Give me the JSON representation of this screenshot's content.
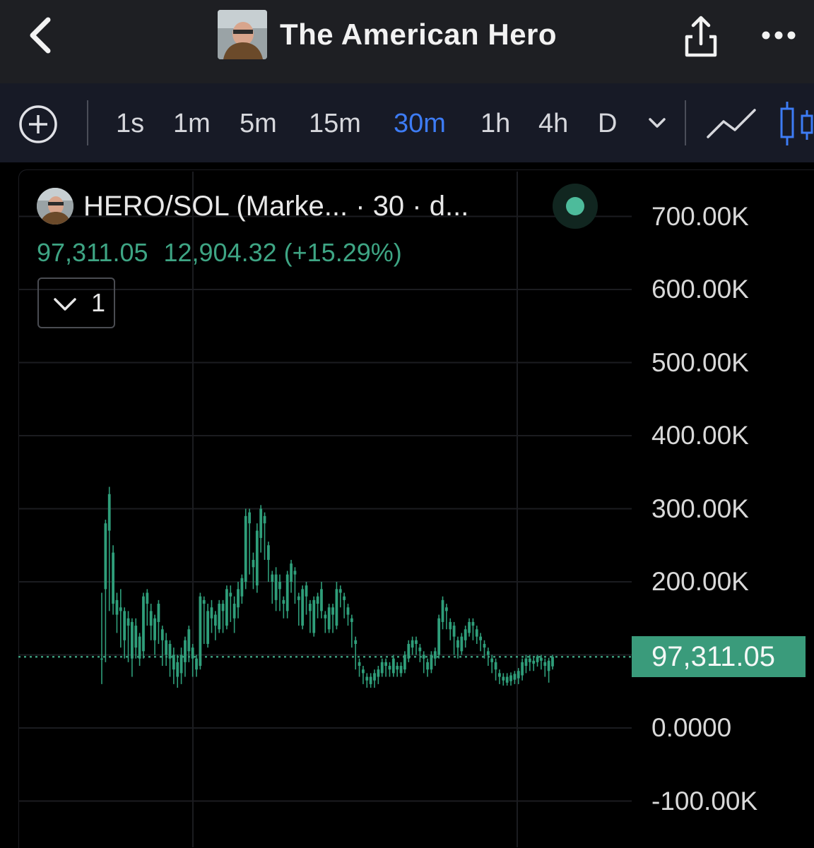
{
  "header": {
    "title": "The American Hero",
    "back_icon": "chevron-left-icon",
    "share_icon": "share-icon",
    "more_icon": "more-horizontal-icon"
  },
  "toolbar": {
    "timeframes": [
      "1s",
      "1m",
      "5m",
      "15m",
      "30m",
      "1h",
      "4h",
      "D"
    ],
    "active_timeframe": "30m",
    "active_color": "#3d7cf5"
  },
  "legend": {
    "symbol": "HERO/SOL (Marke... · 30 · d...",
    "last": "97,311.05",
    "change": "12,904.32 (+15.29%)",
    "indicators_count": "1",
    "status_color": "#4dbb9b"
  },
  "chart_data": {
    "type": "candlestick",
    "interval": "30m",
    "y_ticks": [
      "700.00K",
      "600.00K",
      "500.00K",
      "400.00K",
      "300.00K",
      "200.00K",
      "0.0000",
      "-100.00K"
    ],
    "ylim": [
      -100000,
      700000
    ],
    "last_price": 97311.05,
    "last_price_label": "97,311.05",
    "up_color": "#2f9e7a",
    "down_color": "#e8515a",
    "candles": [
      [
        95000,
        95000,
        60000,
        185000
      ],
      [
        190000,
        280000,
        90000,
        285000
      ],
      [
        270000,
        320000,
        160000,
        330000
      ],
      [
        170000,
        240000,
        155000,
        250000
      ],
      [
        155000,
        175000,
        130000,
        185000
      ],
      [
        160000,
        165000,
        110000,
        190000
      ],
      [
        120000,
        160000,
        95000,
        165000
      ],
      [
        140000,
        150000,
        90000,
        160000
      ],
      [
        95000,
        145000,
        70000,
        150000
      ],
      [
        110000,
        140000,
        95000,
        150000
      ],
      [
        95000,
        125000,
        85000,
        130000
      ],
      [
        105000,
        180000,
        95000,
        185000
      ],
      [
        170000,
        185000,
        140000,
        190000
      ],
      [
        140000,
        160000,
        120000,
        170000
      ],
      [
        120000,
        150000,
        100000,
        155000
      ],
      [
        145000,
        170000,
        115000,
        175000
      ],
      [
        120000,
        135000,
        85000,
        140000
      ],
      [
        100000,
        120000,
        85000,
        130000
      ],
      [
        95000,
        115000,
        70000,
        120000
      ],
      [
        80000,
        100000,
        60000,
        110000
      ],
      [
        70000,
        90000,
        55000,
        100000
      ],
      [
        75000,
        100000,
        60000,
        110000
      ],
      [
        90000,
        120000,
        70000,
        125000
      ],
      [
        105000,
        135000,
        90000,
        140000
      ],
      [
        95000,
        110000,
        70000,
        115000
      ],
      [
        80000,
        95000,
        70000,
        100000
      ],
      [
        85000,
        180000,
        80000,
        185000
      ],
      [
        170000,
        175000,
        115000,
        180000
      ],
      [
        115000,
        160000,
        110000,
        170000
      ],
      [
        150000,
        165000,
        130000,
        175000
      ],
      [
        140000,
        155000,
        120000,
        160000
      ],
      [
        135000,
        170000,
        130000,
        175000
      ],
      [
        160000,
        170000,
        130000,
        175000
      ],
      [
        140000,
        190000,
        135000,
        195000
      ],
      [
        180000,
        185000,
        145000,
        195000
      ],
      [
        150000,
        170000,
        130000,
        180000
      ],
      [
        165000,
        190000,
        150000,
        200000
      ],
      [
        180000,
        205000,
        170000,
        210000
      ],
      [
        200000,
        290000,
        190000,
        300000
      ],
      [
        280000,
        295000,
        210000,
        300000
      ],
      [
        220000,
        230000,
        190000,
        240000
      ],
      [
        195000,
        270000,
        185000,
        280000
      ],
      [
        260000,
        300000,
        240000,
        305000
      ],
      [
        280000,
        290000,
        230000,
        295000
      ],
      [
        230000,
        250000,
        200000,
        255000
      ],
      [
        200000,
        210000,
        170000,
        215000
      ],
      [
        175000,
        210000,
        160000,
        220000
      ],
      [
        190000,
        200000,
        160000,
        210000
      ],
      [
        170000,
        175000,
        150000,
        180000
      ],
      [
        160000,
        210000,
        150000,
        215000
      ],
      [
        200000,
        225000,
        185000,
        230000
      ],
      [
        210000,
        215000,
        170000,
        220000
      ],
      [
        175000,
        180000,
        140000,
        185000
      ],
      [
        140000,
        190000,
        135000,
        195000
      ],
      [
        180000,
        195000,
        155000,
        200000
      ],
      [
        160000,
        170000,
        130000,
        175000
      ],
      [
        130000,
        175000,
        125000,
        180000
      ],
      [
        170000,
        180000,
        150000,
        185000
      ],
      [
        160000,
        190000,
        150000,
        200000
      ],
      [
        150000,
        155000,
        130000,
        160000
      ],
      [
        135000,
        165000,
        130000,
        170000
      ],
      [
        155000,
        165000,
        130000,
        170000
      ],
      [
        140000,
        190000,
        135000,
        200000
      ],
      [
        185000,
        190000,
        165000,
        195000
      ],
      [
        175000,
        180000,
        150000,
        185000
      ],
      [
        155000,
        165000,
        140000,
        170000
      ],
      [
        145000,
        150000,
        110000,
        155000
      ],
      [
        115000,
        120000,
        80000,
        125000
      ],
      [
        85000,
        90000,
        70000,
        95000
      ],
      [
        75000,
        80000,
        60000,
        85000
      ],
      [
        65000,
        70000,
        55000,
        75000
      ],
      [
        60000,
        70000,
        55000,
        75000
      ],
      [
        65000,
        75000,
        55000,
        80000
      ],
      [
        70000,
        80000,
        60000,
        85000
      ],
      [
        75000,
        90000,
        70000,
        95000
      ],
      [
        85000,
        90000,
        70000,
        95000
      ],
      [
        80000,
        85000,
        70000,
        90000
      ],
      [
        75000,
        95000,
        70000,
        100000
      ],
      [
        80000,
        85000,
        70000,
        90000
      ],
      [
        75000,
        85000,
        70000,
        90000
      ],
      [
        80000,
        100000,
        75000,
        105000
      ],
      [
        95000,
        115000,
        90000,
        120000
      ],
      [
        110000,
        120000,
        100000,
        125000
      ],
      [
        115000,
        120000,
        100000,
        125000
      ],
      [
        105000,
        110000,
        90000,
        115000
      ],
      [
        95000,
        100000,
        75000,
        105000
      ],
      [
        80000,
        90000,
        70000,
        95000
      ],
      [
        80000,
        100000,
        75000,
        105000
      ],
      [
        95000,
        105000,
        85000,
        110000
      ],
      [
        100000,
        150000,
        95000,
        155000
      ],
      [
        145000,
        175000,
        135000,
        180000
      ],
      [
        160000,
        165000,
        135000,
        170000
      ],
      [
        135000,
        145000,
        120000,
        150000
      ],
      [
        125000,
        140000,
        100000,
        145000
      ],
      [
        110000,
        120000,
        95000,
        125000
      ],
      [
        105000,
        125000,
        100000,
        130000
      ],
      [
        120000,
        135000,
        110000,
        140000
      ],
      [
        130000,
        145000,
        125000,
        150000
      ],
      [
        140000,
        145000,
        120000,
        150000
      ],
      [
        125000,
        135000,
        115000,
        140000
      ],
      [
        120000,
        125000,
        105000,
        130000
      ],
      [
        110000,
        115000,
        95000,
        120000
      ],
      [
        100000,
        105000,
        85000,
        110000
      ],
      [
        90000,
        95000,
        75000,
        100000
      ],
      [
        80000,
        90000,
        65000,
        95000
      ],
      [
        70000,
        75000,
        60000,
        80000
      ],
      [
        65000,
        70000,
        58000,
        75000
      ],
      [
        62000,
        70000,
        58000,
        75000
      ],
      [
        64000,
        72000,
        58000,
        76000
      ],
      [
        66000,
        74000,
        60000,
        78000
      ],
      [
        68000,
        78000,
        60000,
        82000
      ],
      [
        72000,
        90000,
        65000,
        95000
      ],
      [
        85000,
        95000,
        75000,
        100000
      ],
      [
        90000,
        95000,
        78000,
        100000
      ],
      [
        88000,
        92000,
        78000,
        96000
      ],
      [
        90000,
        98000,
        84000,
        100000
      ],
      [
        92000,
        96000,
        80000,
        100000
      ],
      [
        85000,
        90000,
        70000,
        95000
      ],
      [
        78000,
        92000,
        62000,
        96000
      ],
      [
        84311,
        97311,
        80000,
        100000
      ]
    ]
  }
}
